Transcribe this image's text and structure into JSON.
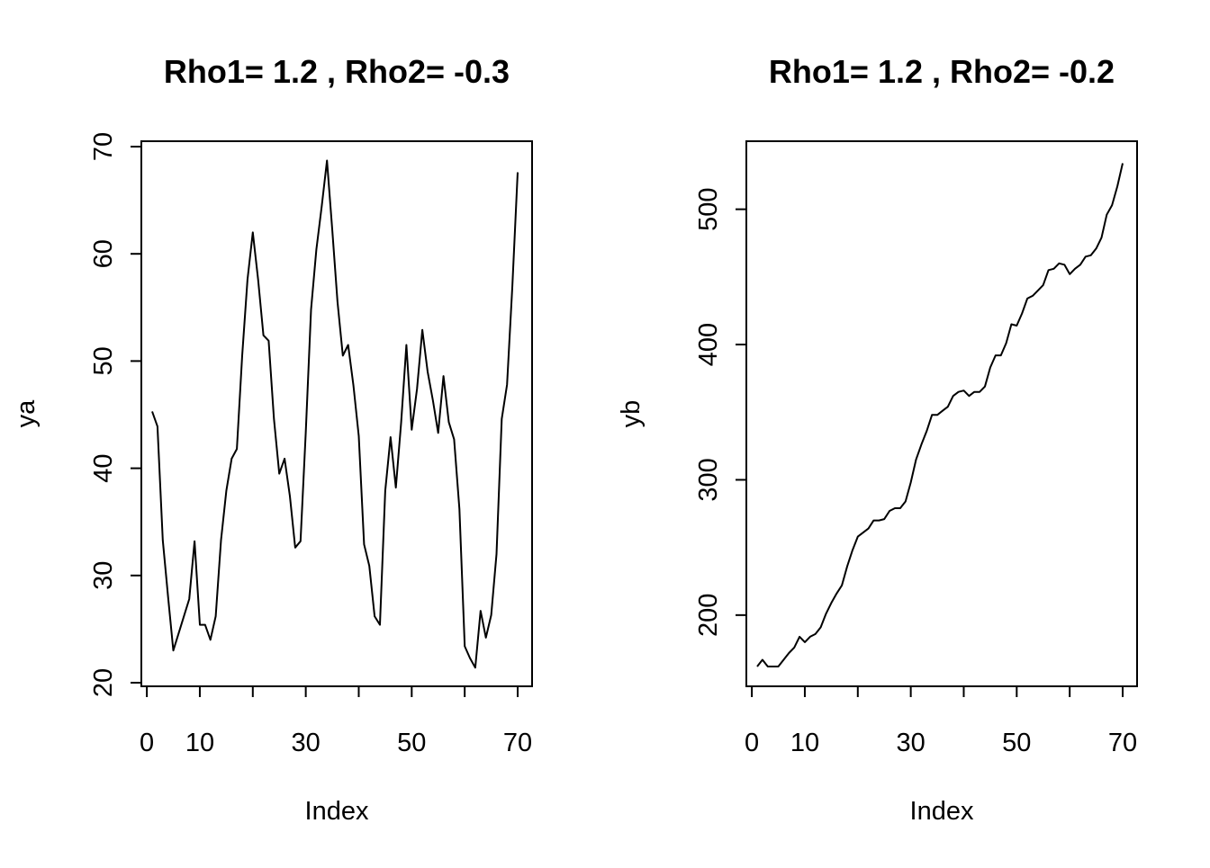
{
  "chart_data": [
    {
      "type": "line",
      "title": "Rho1= 1.2 , Rho2= -0.3",
      "xlabel": "Index",
      "ylabel": "ya",
      "xlim": [
        1,
        70
      ],
      "ylim": [
        20,
        70
      ],
      "x_ticks": [
        0,
        10,
        20,
        30,
        40,
        50,
        60,
        70
      ],
      "x_tick_labels": [
        "0",
        "10",
        "",
        "30",
        "",
        "50",
        "",
        "70"
      ],
      "y_ticks": [
        20,
        30,
        40,
        50,
        60,
        70
      ],
      "y_tick_labels": [
        "20",
        "30",
        "40",
        "50",
        "60",
        "70"
      ],
      "series": [
        {
          "x": [
            1,
            2,
            3,
            4,
            5,
            6,
            7,
            8,
            9,
            10,
            11,
            12,
            13,
            14,
            15,
            16,
            17,
            18,
            19,
            20,
            21,
            22,
            23,
            24,
            25,
            26,
            27,
            28,
            29,
            30,
            31,
            32,
            33,
            34,
            35,
            36,
            37,
            38,
            39,
            40,
            41,
            42,
            43,
            44,
            45,
            46,
            47,
            48,
            49,
            50,
            51,
            52,
            53,
            54,
            55,
            56,
            57,
            58,
            59,
            60,
            61,
            62,
            63,
            64,
            65,
            66,
            67,
            68,
            69,
            70
          ],
          "values": [
            45.3,
            43.9,
            33.3,
            28.0,
            23.0,
            24.6,
            26.2,
            27.8,
            33.2,
            25.4,
            25.4,
            24.0,
            26.2,
            33.3,
            37.9,
            40.9,
            41.8,
            50.5,
            57.6,
            62.0,
            57.6,
            52.4,
            51.9,
            44.6,
            39.5,
            40.9,
            37.4,
            32.6,
            33.2,
            43.3,
            54.8,
            60.4,
            64.4,
            68.7,
            62.2,
            55.5,
            50.5,
            51.5,
            47.7,
            43.0,
            32.9,
            30.9,
            26.2,
            25.4,
            37.9,
            42.9,
            38.2,
            44.3,
            51.5,
            43.6,
            47.4,
            52.9,
            49.0,
            46.3,
            43.3,
            48.6,
            44.3,
            42.7,
            36.2,
            23.4,
            22.3,
            21.4,
            26.7,
            24.2,
            26.3,
            32.0,
            44.6,
            47.8,
            57.0,
            67.6
          ]
        }
      ]
    },
    {
      "type": "line",
      "title": "Rho1= 1.2 , Rho2= -0.2",
      "xlabel": "Index",
      "ylabel": "yb",
      "xlim": [
        1,
        70
      ],
      "ylim": [
        162,
        535
      ],
      "x_ticks": [
        0,
        10,
        20,
        30,
        40,
        50,
        60,
        70
      ],
      "x_tick_labels": [
        "0",
        "10",
        "",
        "30",
        "",
        "50",
        "",
        "70"
      ],
      "y_ticks": [
        200,
        300,
        400,
        500
      ],
      "y_tick_labels": [
        "200",
        "300",
        "400",
        "500"
      ],
      "series": [
        {
          "x": [
            1,
            2,
            3,
            4,
            5,
            6,
            7,
            8,
            9,
            10,
            11,
            12,
            13,
            14,
            15,
            16,
            17,
            18,
            19,
            20,
            21,
            22,
            23,
            24,
            25,
            26,
            27,
            28,
            29,
            30,
            31,
            32,
            33,
            34,
            35,
            36,
            37,
            38,
            39,
            40,
            41,
            42,
            43,
            44,
            45,
            46,
            47,
            48,
            49,
            50,
            51,
            52,
            53,
            54,
            55,
            56,
            57,
            58,
            59,
            60,
            61,
            62,
            63,
            64,
            65,
            66,
            67,
            68,
            69,
            70
          ],
          "values": [
            162,
            167,
            162,
            162,
            162,
            167,
            172,
            176,
            184,
            180,
            184,
            186,
            191,
            201,
            209,
            216,
            222,
            236,
            248,
            258,
            261,
            264,
            270,
            270,
            271,
            277,
            279,
            279,
            284,
            298,
            315,
            326,
            336,
            348,
            348,
            351,
            354,
            362,
            365,
            366,
            362,
            365,
            365,
            369,
            383,
            392,
            392,
            401,
            415,
            414,
            423,
            434,
            436,
            440,
            444,
            455,
            456,
            460,
            459,
            452,
            456,
            459,
            465,
            466,
            471,
            479,
            496,
            503,
            517,
            534
          ]
        }
      ]
    }
  ]
}
